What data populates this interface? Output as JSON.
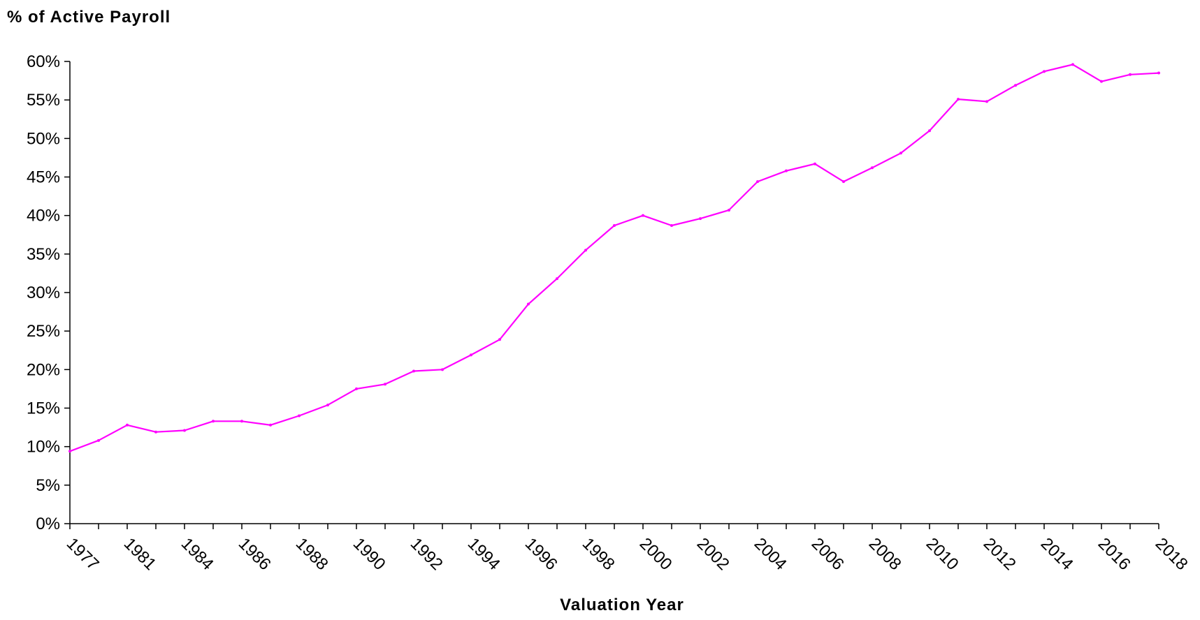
{
  "chart_data": {
    "type": "line",
    "ylabel": "% of Active Payroll",
    "xlabel": "Valuation Year",
    "ylim": [
      0,
      60
    ],
    "y_ticks": [
      "0%",
      "5%",
      "10%",
      "15%",
      "20%",
      "25%",
      "30%",
      "35%",
      "40%",
      "45%",
      "50%",
      "55%",
      "60%"
    ],
    "x_tick_labels": [
      "1977",
      "1981",
      "1984",
      "1986",
      "1988",
      "1990",
      "1992",
      "1994",
      "1996",
      "1998",
      "2000",
      "2002",
      "2004",
      "2006",
      "2008",
      "2010",
      "2012",
      "2014",
      "2016",
      "2018"
    ],
    "grid": false,
    "legend": "none",
    "series": [
      {
        "color": "#ff00ff",
        "values": [
          9.4,
          10.8,
          12.8,
          11.9,
          12.1,
          13.3,
          13.3,
          12.8,
          14.0,
          15.4,
          17.5,
          18.1,
          19.8,
          20.0,
          21.9,
          23.9,
          28.5,
          31.8,
          35.5,
          38.7,
          40.0,
          38.7,
          39.6,
          40.7,
          44.4,
          45.8,
          46.7,
          44.4,
          46.2,
          48.1,
          51.0,
          55.1,
          54.8,
          56.9,
          58.7,
          59.6,
          57.4,
          58.3,
          58.5
        ]
      }
    ]
  }
}
